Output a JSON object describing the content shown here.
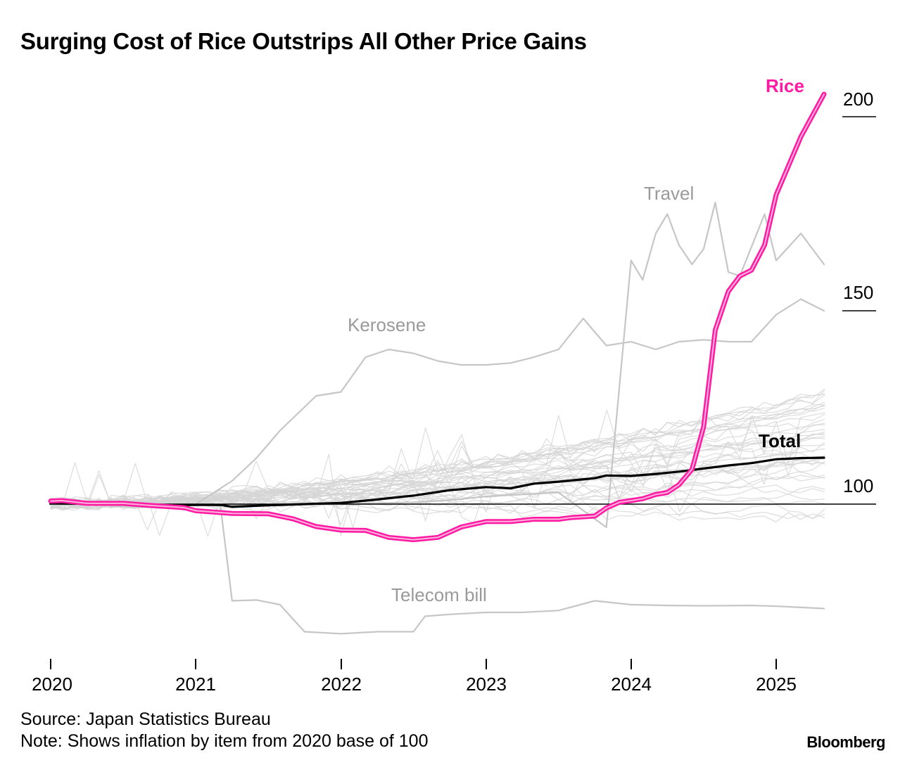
{
  "title": "Surging Cost of Rice Outstrips All Other Price Gains",
  "footer": {
    "source": "Source: Japan Statistics Bureau",
    "note": "Note: Shows inflation by item from 2020 base of 100",
    "brand": "Bloomberg"
  },
  "colors": {
    "rice": "#ff1aa3",
    "total": "#000000",
    "background_series": "#d4d4d4",
    "annotation": "#9a9a9a"
  },
  "chart_data": {
    "type": "line",
    "title": "Surging Cost of Rice Outstrips All Other Price Gains",
    "xlabel": "",
    "ylabel": "",
    "xlim": [
      2020.0,
      2025.67
    ],
    "ylim": [
      65,
      210
    ],
    "y_ticks": [
      100,
      150,
      200
    ],
    "x_ticks": [
      2020,
      2021,
      2022,
      2023,
      2024,
      2025
    ],
    "x_tick_labels": [
      "2020",
      "2021",
      "2022",
      "2023",
      "2024",
      "2025"
    ],
    "baseline": 100,
    "grid": false,
    "legend": "none (direct labels)",
    "highlight_series": [
      {
        "name": "Rice",
        "points": [
          [
            2020.0,
            100.8
          ],
          [
            2020.08,
            100.9
          ],
          [
            2020.25,
            100.2
          ],
          [
            2020.5,
            100.2
          ],
          [
            2020.67,
            99.7
          ],
          [
            2020.92,
            99.1
          ],
          [
            2021.0,
            98.3
          ],
          [
            2021.25,
            97.6
          ],
          [
            2021.5,
            97.5
          ],
          [
            2021.67,
            96.2
          ],
          [
            2021.83,
            94.2
          ],
          [
            2022.0,
            93.3
          ],
          [
            2022.17,
            93.2
          ],
          [
            2022.33,
            91.4
          ],
          [
            2022.5,
            90.8
          ],
          [
            2022.67,
            91.4
          ],
          [
            2022.83,
            94.1
          ],
          [
            2023.0,
            95.5
          ],
          [
            2023.17,
            95.5
          ],
          [
            2023.33,
            96.1
          ],
          [
            2023.5,
            96.1
          ],
          [
            2023.58,
            96.5
          ],
          [
            2023.75,
            96.9
          ],
          [
            2023.83,
            99.0
          ],
          [
            2023.92,
            100.5
          ],
          [
            2024.0,
            100.9
          ],
          [
            2024.08,
            101.4
          ],
          [
            2024.17,
            102.5
          ],
          [
            2024.25,
            103.0
          ],
          [
            2024.33,
            105.0
          ],
          [
            2024.42,
            109.0
          ],
          [
            2024.5,
            120.0
          ],
          [
            2024.58,
            145.0
          ],
          [
            2024.67,
            155.0
          ],
          [
            2024.75,
            159.0
          ],
          [
            2024.83,
            160.5
          ],
          [
            2024.92,
            167.0
          ],
          [
            2025.0,
            180.0
          ],
          [
            2025.17,
            195.0
          ],
          [
            2025.33,
            206.0
          ]
        ]
      },
      {
        "name": "Total",
        "points": [
          [
            2020.0,
            100.2
          ],
          [
            2020.5,
            100.0
          ],
          [
            2020.83,
            99.7
          ],
          [
            2021.0,
            99.8
          ],
          [
            2021.17,
            99.8
          ],
          [
            2021.25,
            99.3
          ],
          [
            2021.5,
            99.7
          ],
          [
            2021.75,
            100.0
          ],
          [
            2022.0,
            100.3
          ],
          [
            2022.25,
            101.2
          ],
          [
            2022.5,
            102.2
          ],
          [
            2022.75,
            103.6
          ],
          [
            2023.0,
            104.4
          ],
          [
            2023.17,
            104.1
          ],
          [
            2023.33,
            105.3
          ],
          [
            2023.5,
            105.8
          ],
          [
            2023.75,
            106.7
          ],
          [
            2023.83,
            107.4
          ],
          [
            2024.0,
            107.3
          ],
          [
            2024.17,
            107.8
          ],
          [
            2024.33,
            108.4
          ],
          [
            2024.5,
            109.2
          ],
          [
            2024.67,
            110.0
          ],
          [
            2024.83,
            110.6
          ],
          [
            2025.0,
            111.6
          ],
          [
            2025.17,
            111.9
          ],
          [
            2025.33,
            112.0
          ]
        ]
      }
    ],
    "labeled_series": [
      {
        "name": "Travel",
        "points": [
          [
            2020.0,
            100
          ],
          [
            2020.58,
            99.5
          ],
          [
            2020.83,
            99.2
          ],
          [
            2021.0,
            99.8
          ],
          [
            2021.5,
            99.8
          ],
          [
            2021.75,
            100
          ],
          [
            2022.0,
            100
          ],
          [
            2022.5,
            100.5
          ],
          [
            2022.75,
            101
          ],
          [
            2023.0,
            102
          ],
          [
            2023.5,
            103
          ],
          [
            2023.83,
            94
          ],
          [
            2024.0,
            163
          ],
          [
            2024.08,
            158
          ],
          [
            2024.17,
            170
          ],
          [
            2024.25,
            175
          ],
          [
            2024.33,
            167
          ],
          [
            2024.42,
            162
          ],
          [
            2024.5,
            166
          ],
          [
            2024.58,
            178
          ],
          [
            2024.67,
            160
          ],
          [
            2024.75,
            159
          ],
          [
            2024.92,
            175
          ],
          [
            2025.0,
            163
          ],
          [
            2025.17,
            170
          ],
          [
            2025.33,
            162
          ]
        ]
      },
      {
        "name": "Kerosene",
        "points": [
          [
            2020.0,
            100.5
          ],
          [
            2020.25,
            99.8
          ],
          [
            2020.58,
            99.3
          ],
          [
            2020.83,
            99.0
          ],
          [
            2021.0,
            100
          ],
          [
            2021.25,
            106
          ],
          [
            2021.42,
            112
          ],
          [
            2021.58,
            119
          ],
          [
            2021.83,
            128
          ],
          [
            2022.0,
            129
          ],
          [
            2022.17,
            138
          ],
          [
            2022.33,
            140
          ],
          [
            2022.5,
            139
          ],
          [
            2022.67,
            137
          ],
          [
            2022.83,
            136
          ],
          [
            2023.0,
            136
          ],
          [
            2023.17,
            136.5
          ],
          [
            2023.33,
            138
          ],
          [
            2023.5,
            140
          ],
          [
            2023.67,
            148
          ],
          [
            2023.83,
            141
          ],
          [
            2024.0,
            142
          ],
          [
            2024.17,
            140
          ],
          [
            2024.33,
            142
          ],
          [
            2024.5,
            142.5
          ],
          [
            2024.67,
            142
          ],
          [
            2024.83,
            142
          ],
          [
            2025.0,
            149
          ],
          [
            2025.17,
            153
          ],
          [
            2025.33,
            150
          ]
        ]
      },
      {
        "name": "Telecom bill",
        "points": [
          [
            2020.0,
            100
          ],
          [
            2020.5,
            100
          ],
          [
            2021.0,
            100
          ],
          [
            2021.17,
            99.5
          ],
          [
            2021.25,
            75
          ],
          [
            2021.42,
            75.2
          ],
          [
            2021.58,
            74
          ],
          [
            2021.75,
            67
          ],
          [
            2022.0,
            66.5
          ],
          [
            2022.25,
            67
          ],
          [
            2022.5,
            67
          ],
          [
            2022.58,
            71
          ],
          [
            2022.75,
            71.5
          ],
          [
            2023.0,
            72
          ],
          [
            2023.25,
            72
          ],
          [
            2023.5,
            72.5
          ],
          [
            2023.75,
            75
          ],
          [
            2024.0,
            74
          ],
          [
            2024.25,
            73.8
          ],
          [
            2024.5,
            73.7
          ],
          [
            2024.83,
            73.8
          ],
          [
            2025.0,
            73.6
          ],
          [
            2025.17,
            73.3
          ],
          [
            2025.33,
            73
          ]
        ]
      }
    ],
    "annotations": [
      "Rice",
      "Total",
      "Travel",
      "Kerosene",
      "Telecom bill"
    ]
  }
}
